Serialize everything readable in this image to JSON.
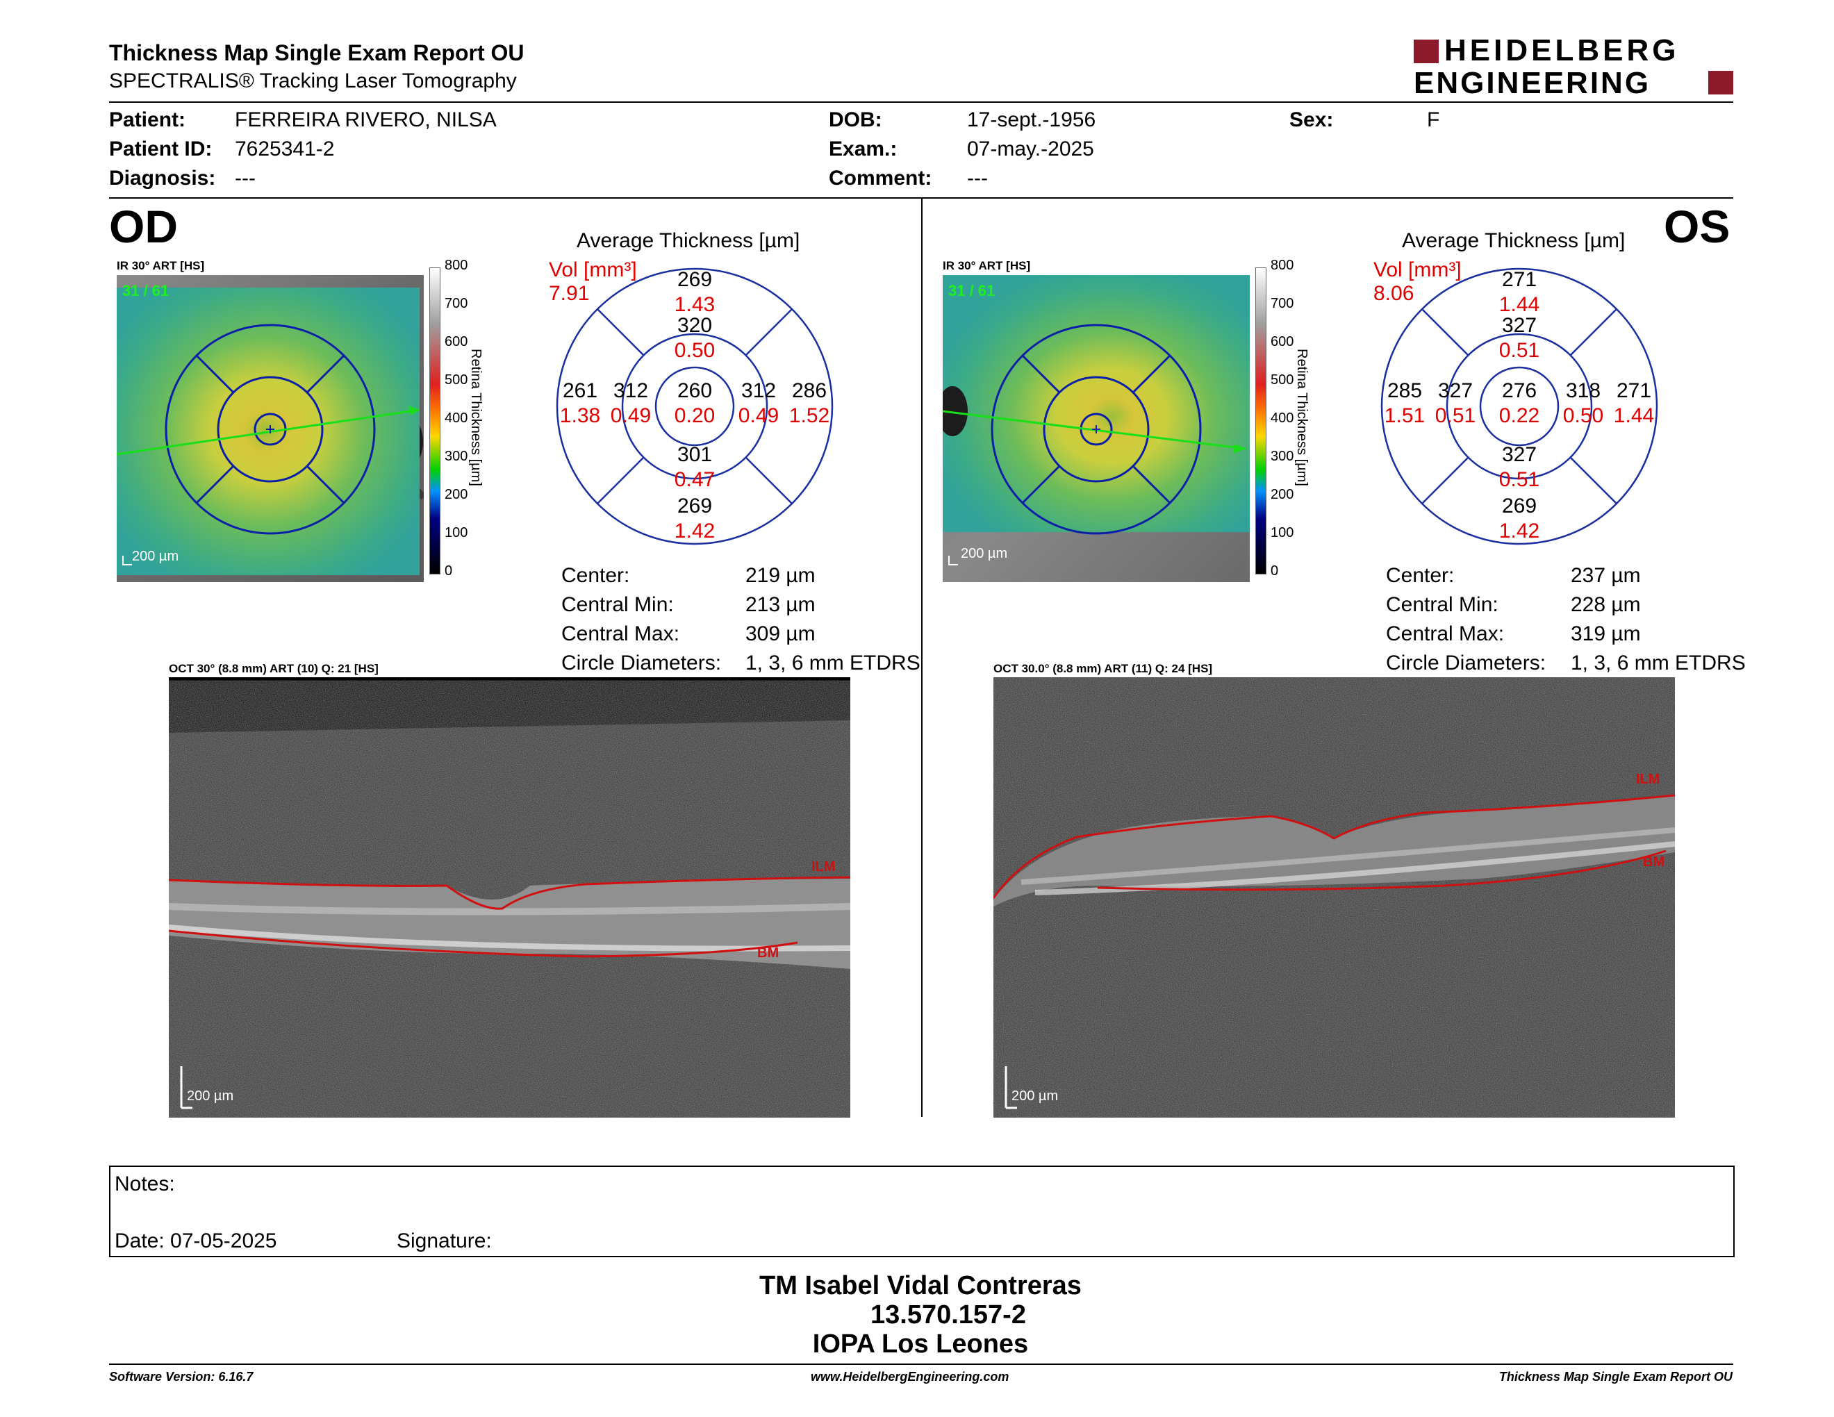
{
  "report": {
    "title": "Thickness Map Single Exam Report OU",
    "subtitle": "SPECTRALIS® Tracking Laser Tomography",
    "brand_line1": "HEIDELBERG",
    "brand_line2": "ENGINEERING",
    "brand_color": "#8b1a2b"
  },
  "patient": {
    "patient_label": "Patient:",
    "patient_value": "FERREIRA RIVERO, NILSA",
    "id_label": "Patient ID:",
    "id_value": "7625341-2",
    "diag_label": "Diagnosis:",
    "diag_value": "---",
    "dob_label": "DOB:",
    "dob_value": "17-sept.-1956",
    "exam_label": "Exam.:",
    "exam_value": "07-may.-2025",
    "comment_label": "Comment:",
    "comment_value": "---",
    "sex_label": "Sex:",
    "sex_value": "F"
  },
  "od": {
    "eye": "OD",
    "ir_caption": "IR 30° ART [HS]",
    "frame_counter": "31 / 61",
    "scale_label": "200 µm",
    "colorbar_ticks": [
      "800",
      "700",
      "600",
      "500",
      "400",
      "300",
      "200",
      "100",
      "0"
    ],
    "colorbar_title": "Retina Thickness [µm]",
    "avg_title": "Average Thickness [µm]",
    "vol_label": "Vol [mm³]",
    "vol_value": "7.91",
    "grid": {
      "sup_outer": {
        "t": "269",
        "v": "1.43"
      },
      "sup_inner": {
        "t": "320",
        "v": "0.50"
      },
      "center": {
        "t": "260",
        "v": "0.20"
      },
      "temp_outer": {
        "t": "261",
        "v": "1.38"
      },
      "temp_inner": {
        "t": "312",
        "v": "0.49"
      },
      "nas_inner": {
        "t": "312",
        "v": "0.49"
      },
      "nas_outer": {
        "t": "286",
        "v": "1.52"
      },
      "inf_inner": {
        "t": "301",
        "v": "0.47"
      },
      "inf_outer": {
        "t": "269",
        "v": "1.42"
      }
    },
    "stats": {
      "center_label": "Center:",
      "center_value": "219 µm",
      "min_label": "Central Min:",
      "min_value": "213 µm",
      "max_label": "Central Max:",
      "max_value": "309 µm",
      "diam_label": "Circle Diameters:",
      "diam_value": "1, 3, 6 mm ETDRS"
    },
    "oct_caption": "OCT 30° (8.8 mm) ART (10) Q: 21 [HS]",
    "ilm": "ILM",
    "bm": "BM",
    "oct_scale": "200 µm"
  },
  "os": {
    "eye": "OS",
    "ir_caption": "IR 30° ART [HS]",
    "frame_counter": "31 / 61",
    "scale_label": "200 µm",
    "colorbar_ticks": [
      "800",
      "700",
      "600",
      "500",
      "400",
      "300",
      "200",
      "100",
      "0"
    ],
    "colorbar_title": "Retina Thickness [µm]",
    "avg_title": "Average Thickness [µm]",
    "vol_label": "Vol [mm³]",
    "vol_value": "8.06",
    "grid": {
      "sup_outer": {
        "t": "271",
        "v": "1.44"
      },
      "sup_inner": {
        "t": "327",
        "v": "0.51"
      },
      "center": {
        "t": "276",
        "v": "0.22"
      },
      "temp_outer": {
        "t": "285",
        "v": "1.51"
      },
      "temp_inner": {
        "t": "327",
        "v": "0.51"
      },
      "nas_inner": {
        "t": "318",
        "v": "0.50"
      },
      "nas_outer": {
        "t": "271",
        "v": "1.44"
      },
      "inf_inner": {
        "t": "327",
        "v": "0.51"
      },
      "inf_outer": {
        "t": "269",
        "v": "1.42"
      }
    },
    "stats": {
      "center_label": "Center:",
      "center_value": "237 µm",
      "min_label": "Central Min:",
      "min_value": "228 µm",
      "max_label": "Central Max:",
      "max_value": "319 µm",
      "diam_label": "Circle Diameters:",
      "diam_value": "1, 3, 6 mm ETDRS"
    },
    "oct_caption": "OCT 30.0° (8.8 mm) ART (11) Q: 24 [HS]",
    "ilm": "ILM",
    "bm": "BM",
    "oct_scale": "200 µm"
  },
  "notes": {
    "notes_label": "Notes:",
    "date_label": "Date: 07-05-2025",
    "signature_label": "Signature:"
  },
  "signer": {
    "name": "TM Isabel Vidal Contreras",
    "id": "13.570.157-2",
    "org": "IOPA Los Leones"
  },
  "footer": {
    "software": "Software Version: 6.16.7",
    "website": "www.HeidelbergEngineering.com",
    "report_name": "Thickness Map Single Exam Report OU"
  }
}
